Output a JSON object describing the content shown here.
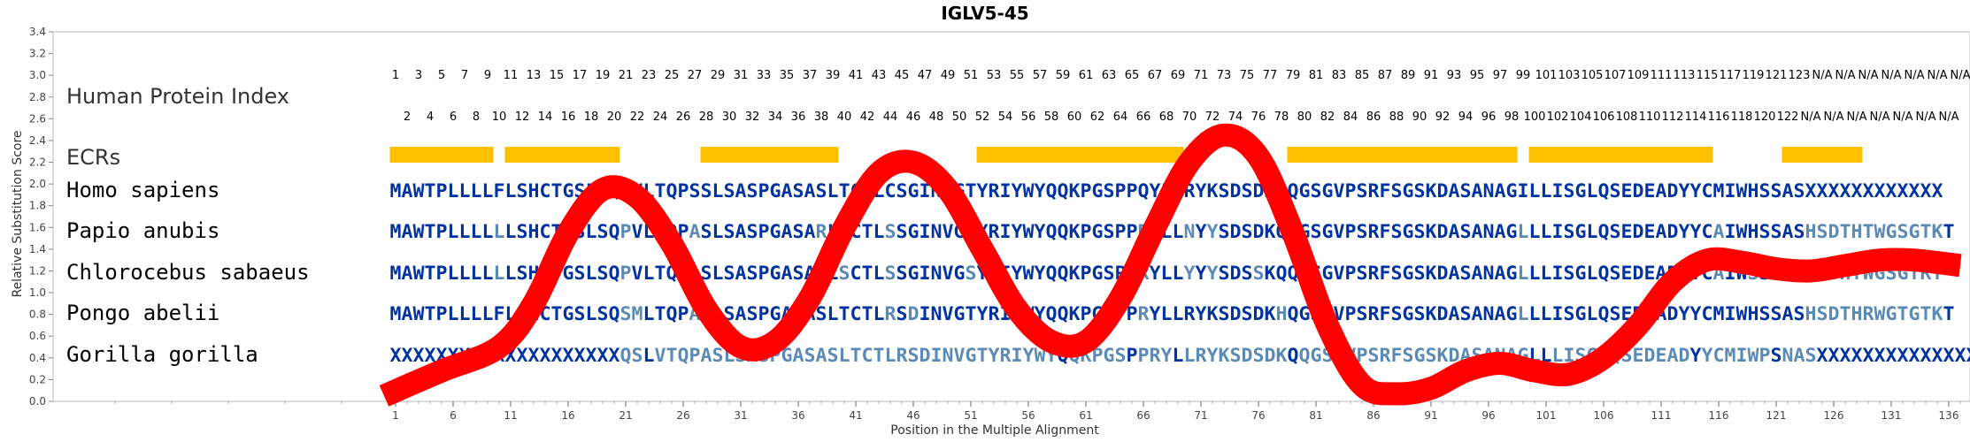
{
  "chart_data": {
    "type": "line",
    "title": "IGLV5-45",
    "xlabel": "Position in the Multiple Alignment",
    "ylabel": "Relative Substitution Score",
    "xlim": [
      0,
      137
    ],
    "ylim": [
      0,
      3.4
    ],
    "y_ticks": [
      "0.0",
      "0.2",
      "0.4",
      "0.6",
      "0.8",
      "1.0",
      "1.2",
      "1.4",
      "1.6",
      "1.8",
      "2.0",
      "2.2",
      "2.4",
      "2.6",
      "2.8",
      "3.0",
      "3.2",
      "3.4"
    ],
    "x_ticks": [
      "1",
      "6",
      "11",
      "16",
      "21",
      "26",
      "31",
      "36",
      "41",
      "46",
      "51",
      "56",
      "61",
      "66",
      "71",
      "76",
      "81",
      "86",
      "91",
      "96",
      "101",
      "106",
      "111",
      "116",
      "121",
      "126",
      "131",
      "136"
    ],
    "series": [
      {
        "color": "#ff0000",
        "x": [
          0,
          5,
          10,
          13,
          16,
          19,
          22,
          25,
          28,
          31,
          34,
          37,
          40,
          43,
          46,
          49,
          52,
          55,
          58,
          61,
          64,
          67,
          70,
          73,
          76,
          79,
          82,
          85,
          88,
          91,
          94,
          97,
          100,
          103,
          106,
          109,
          112,
          115,
          118,
          121,
          124,
          127,
          130,
          133,
          137
        ],
        "y": [
          0.05,
          0.28,
          0.5,
          0.9,
          1.55,
          1.95,
          1.88,
          1.45,
          0.85,
          0.5,
          0.55,
          0.95,
          1.6,
          2.1,
          2.2,
          1.95,
          1.4,
          0.85,
          0.55,
          0.55,
          0.95,
          1.6,
          2.2,
          2.45,
          2.25,
          1.55,
          0.7,
          0.15,
          0.07,
          0.12,
          0.28,
          0.35,
          0.28,
          0.25,
          0.4,
          0.7,
          1.1,
          1.3,
          1.28,
          1.22,
          1.2,
          1.25,
          1.3,
          1.3,
          1.25
        ]
      }
    ],
    "annotations": {
      "hpi_label": "Human Protein Index",
      "hpi_odd": [
        "1",
        "3",
        "5",
        "7",
        "9",
        "11",
        "13",
        "15",
        "17",
        "19",
        "21",
        "23",
        "25",
        "27",
        "29",
        "31",
        "33",
        "35",
        "37",
        "39",
        "41",
        "43",
        "45",
        "47",
        "49",
        "51",
        "53",
        "55",
        "57",
        "59",
        "61",
        "63",
        "65",
        "67",
        "69",
        "71",
        "73",
        "75",
        "77",
        "79",
        "81",
        "83",
        "85",
        "87",
        "89",
        "91",
        "93",
        "95",
        "97",
        "99",
        "101",
        "103",
        "105",
        "107",
        "109",
        "111",
        "113",
        "115",
        "117",
        "119",
        "121",
        "123",
        "N/A",
        "N/A",
        "N/A",
        "N/A",
        "N/A",
        "N/A",
        "N/A"
      ],
      "hpi_even": [
        "2",
        "4",
        "6",
        "8",
        "10",
        "12",
        "14",
        "16",
        "18",
        "20",
        "22",
        "24",
        "26",
        "28",
        "30",
        "32",
        "34",
        "36",
        "38",
        "40",
        "42",
        "44",
        "46",
        "48",
        "50",
        "52",
        "54",
        "56",
        "58",
        "60",
        "62",
        "64",
        "66",
        "68",
        "70",
        "72",
        "74",
        "76",
        "78",
        "80",
        "82",
        "84",
        "86",
        "88",
        "90",
        "92",
        "94",
        "96",
        "98",
        "100",
        "102",
        "104",
        "106",
        "108",
        "110",
        "112",
        "114",
        "116",
        "118",
        "120",
        "122",
        "N/A",
        "N/A",
        "N/A",
        "N/A",
        "N/A",
        "N/A",
        "N/A"
      ],
      "ecr_label": "ECRs",
      "ecr_color": "#ffc000",
      "ecr_ranges": [
        [
          1,
          9
        ],
        [
          11,
          20
        ],
        [
          28,
          39
        ],
        [
          52,
          69
        ],
        [
          79,
          98
        ],
        [
          100,
          115
        ],
        [
          122,
          128
        ]
      ],
      "residue_colors": {
        "conserved": "#0033a0",
        "variable": "#5b8ab5",
        "other": "#6e9e8c"
      },
      "sequences": [
        {
          "species": "Homo sapiens",
          "seq": "MAWTPLLLLFLSHCTGSLSQAVLTQPSSLSASPGASASLTCTLCSGINVGTYRIYWYQQKPGSPPQYLLRYKSDSDKQQGSGVPSRFSGSKDASANAGILLISGLQSEDEADYYCMIWHSSASXXXXXXXXXXXX"
        },
        {
          "species": "Papio anubis",
          "seq": "MAWTPLLLLLLSHCTGSLSQPVLTQPASLSASPGASARLTCTLSSGINVGSYRIYWYQQKPGSPPRYLLNYYSDSDKQQGSGVPSRFSGSKDASANAGLLLISGLQSEDEADYYCAIWHSSASHSDTHTWGSGTKT"
        },
        {
          "species": "Chlorocebus sabaeus",
          "seq": "MAWTPLLLLLLSHCTGSLSQPVLTQPASLSASPGASARLSCTLSSGINVGSYSIYWYQQKPGSPPRYLLYYYSDSSKQQGSGVPSRFSGSKDASANAGLLLISGLQSEDEADYYCAIWSSASHSDTHTWGSGTKT"
        },
        {
          "species": "Pongo abelii",
          "seq": "MAWTPLLLLFLSHCTGSLSQSMLTQPASLSASPGASASLTCTLRSDINVGTYRIYWYQQKPGSPPRYLLRYKSDSDKHQGSGVPSRFSGSKDASANAGLLLISGLQSEDEADYYCMIWHSSASHSDTHRWGTGTKT"
        },
        {
          "species": "Gorilla gorilla",
          "seq": "XXXXXXXXXXXXXXXXXXXXQSLVTQPASLSASPGASASLTCTLRSDINVGTYRIYWYQQKPGSPPRYLLRYKSDSDKQQGSGVPSRFSGSKDASANAGLLLISGLQSEDEADYYCMIWPSNASXXXXXXXXXXXXXXX"
        }
      ]
    }
  }
}
